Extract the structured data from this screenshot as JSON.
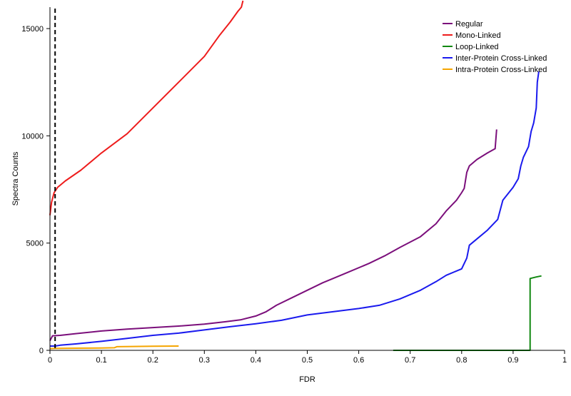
{
  "chart_data": {
    "type": "line",
    "title": "",
    "xlabel": "FDR",
    "ylabel": "Spectra Counts",
    "xlim": [
      0,
      1
    ],
    "ylim": [
      0,
      16000
    ],
    "x_ticks": [
      "0",
      "0.1",
      "0.2",
      "0.3",
      "0.4",
      "0.5",
      "0.6",
      "0.7",
      "0.8",
      "0.9",
      "1"
    ],
    "y_ticks": [
      "0",
      "5000",
      "10000",
      "15000"
    ],
    "x_tick_values": [
      0,
      0.1,
      0.2,
      0.3,
      0.4,
      0.5,
      0.6,
      0.7,
      0.8,
      0.9,
      1
    ],
    "y_tick_values": [
      0,
      5000,
      10000,
      15000
    ],
    "grid": false,
    "legend_position": "top-right",
    "reference_line": {
      "x": 0.01,
      "style": "dashed",
      "color": "#000000"
    },
    "series": [
      {
        "name": "Regular",
        "color": "#7b0f7b",
        "points": [
          [
            0,
            450
          ],
          [
            0.005,
            680
          ],
          [
            0.02,
            700
          ],
          [
            0.05,
            780
          ],
          [
            0.1,
            900
          ],
          [
            0.15,
            990
          ],
          [
            0.2,
            1060
          ],
          [
            0.25,
            1130
          ],
          [
            0.3,
            1220
          ],
          [
            0.34,
            1330
          ],
          [
            0.37,
            1420
          ],
          [
            0.4,
            1600
          ],
          [
            0.42,
            1800
          ],
          [
            0.44,
            2100
          ],
          [
            0.47,
            2450
          ],
          [
            0.5,
            2800
          ],
          [
            0.53,
            3150
          ],
          [
            0.55,
            3350
          ],
          [
            0.58,
            3650
          ],
          [
            0.62,
            4050
          ],
          [
            0.65,
            4400
          ],
          [
            0.68,
            4800
          ],
          [
            0.72,
            5300
          ],
          [
            0.75,
            5900
          ],
          [
            0.77,
            6500
          ],
          [
            0.79,
            7000
          ],
          [
            0.8,
            7350
          ],
          [
            0.805,
            7550
          ],
          [
            0.81,
            8300
          ],
          [
            0.815,
            8600
          ],
          [
            0.83,
            8900
          ],
          [
            0.85,
            9200
          ],
          [
            0.865,
            9400
          ],
          [
            0.868,
            10300
          ]
        ]
      },
      {
        "name": "Mono-Linked",
        "color": "#ee1c1c",
        "points": [
          [
            0,
            6300
          ],
          [
            0.003,
            6900
          ],
          [
            0.008,
            7350
          ],
          [
            0.015,
            7600
          ],
          [
            0.03,
            7900
          ],
          [
            0.06,
            8400
          ],
          [
            0.1,
            9200
          ],
          [
            0.15,
            10100
          ],
          [
            0.2,
            11300
          ],
          [
            0.25,
            12500
          ],
          [
            0.3,
            13700
          ],
          [
            0.33,
            14700
          ],
          [
            0.35,
            15300
          ],
          [
            0.365,
            15800
          ],
          [
            0.372,
            16000
          ],
          [
            0.375,
            16300
          ]
        ]
      },
      {
        "name": "Loop-Linked",
        "color": "#118811",
        "points": [
          [
            0.667,
            0
          ],
          [
            0.93,
            0
          ],
          [
            0.933,
            0
          ],
          [
            0.933,
            3350
          ],
          [
            0.945,
            3420
          ],
          [
            0.955,
            3470
          ]
        ]
      },
      {
        "name": "Inter-Protein Cross-Linked",
        "color": "#1a1aee",
        "points": [
          [
            0,
            200
          ],
          [
            0.01,
            200
          ],
          [
            0.02,
            240
          ],
          [
            0.05,
            300
          ],
          [
            0.1,
            420
          ],
          [
            0.15,
            560
          ],
          [
            0.2,
            700
          ],
          [
            0.25,
            800
          ],
          [
            0.3,
            950
          ],
          [
            0.35,
            1100
          ],
          [
            0.4,
            1240
          ],
          [
            0.45,
            1400
          ],
          [
            0.5,
            1650
          ],
          [
            0.55,
            1800
          ],
          [
            0.6,
            1950
          ],
          [
            0.64,
            2100
          ],
          [
            0.68,
            2400
          ],
          [
            0.72,
            2800
          ],
          [
            0.75,
            3200
          ],
          [
            0.77,
            3500
          ],
          [
            0.8,
            3800
          ],
          [
            0.81,
            4300
          ],
          [
            0.815,
            4900
          ],
          [
            0.83,
            5200
          ],
          [
            0.85,
            5600
          ],
          [
            0.87,
            6100
          ],
          [
            0.88,
            7000
          ],
          [
            0.9,
            7600
          ],
          [
            0.91,
            8000
          ],
          [
            0.915,
            8600
          ],
          [
            0.92,
            9000
          ],
          [
            0.93,
            9500
          ],
          [
            0.935,
            10200
          ],
          [
            0.94,
            10600
          ],
          [
            0.945,
            11300
          ],
          [
            0.947,
            12500
          ],
          [
            0.95,
            13000
          ]
        ]
      },
      {
        "name": "Intra-Protein Cross-Linked",
        "color": "#f5a500",
        "points": [
          [
            0,
            80
          ],
          [
            0.01,
            90
          ],
          [
            0.05,
            100
          ],
          [
            0.1,
            110
          ],
          [
            0.125,
            120
          ],
          [
            0.13,
            170
          ],
          [
            0.16,
            180
          ],
          [
            0.2,
            190
          ],
          [
            0.25,
            200
          ]
        ]
      }
    ]
  }
}
